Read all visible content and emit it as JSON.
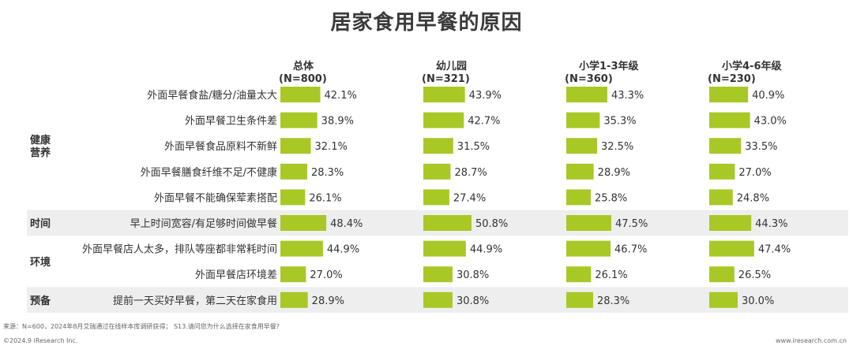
{
  "title": "居家食用早餐的原因",
  "source": "来源：N=600，2024年8月艾瑞通过在线样本库调研获得；  S13.请问您为什么选择在家食用早餐?",
  "copyright": "©2024.9 iResearch Inc.",
  "website": "www.iresearch.com.cn",
  "colors": {
    "bar": "#a8c826",
    "band": "#eeeeee",
    "text": "#333333"
  },
  "chart_data": {
    "type": "bar",
    "orientation": "horizontal",
    "title": "居家食用早餐的原因",
    "groups": [
      {
        "name": "健康\n营养",
        "rows": [
          0,
          1,
          2,
          3,
          4
        ],
        "shaded": false
      },
      {
        "name": "时间",
        "rows": [
          5
        ],
        "shaded": true
      },
      {
        "name": "环境",
        "rows": [
          6,
          7
        ],
        "shaded": false
      },
      {
        "name": "预备",
        "rows": [
          8
        ],
        "shaded": true
      }
    ],
    "categories": [
      "外面早餐食盐/糖分/油量太大",
      "外面早餐卫生条件差",
      "外面早餐食品原料不新鲜",
      "外面早餐膳食纤维不足/不健康",
      "外面早餐不能确保荤素搭配",
      "早上时间宽容/有足够时间做早餐",
      "外面早餐店人太多，排队等座都非常耗时间",
      "外面早餐店环境差",
      "提前一天买好早餐，第二天在家食用"
    ],
    "series": [
      {
        "name": "总体",
        "n": "(N=800)",
        "values": [
          42.1,
          38.9,
          32.1,
          28.3,
          26.1,
          48.4,
          44.9,
          27.0,
          28.9
        ]
      },
      {
        "name": "幼儿园",
        "n": "(N=321)",
        "values": [
          43.9,
          42.7,
          31.5,
          28.7,
          27.4,
          50.8,
          44.9,
          30.8,
          30.8
        ]
      },
      {
        "name": "小学1-3年级",
        "n": "(N=360)",
        "values": [
          43.3,
          35.3,
          32.5,
          28.9,
          25.8,
          47.5,
          46.7,
          26.1,
          28.3
        ]
      },
      {
        "name": "小学4-6年级",
        "n": "(N=230)",
        "values": [
          40.9,
          43.0,
          33.5,
          27.0,
          24.8,
          44.3,
          47.4,
          26.5,
          30.0
        ]
      }
    ],
    "value_suffix": "%",
    "decimals": 1
  }
}
